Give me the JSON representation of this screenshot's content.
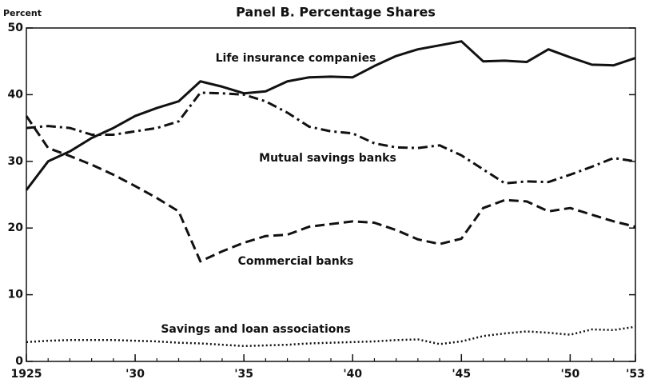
{
  "chart_data": {
    "type": "line",
    "title": "Panel B.  Percentage Shares",
    "y_label": "Percent",
    "x": [
      1925,
      1926,
      1927,
      1928,
      1929,
      1930,
      1931,
      1932,
      1933,
      1934,
      1935,
      1936,
      1937,
      1938,
      1939,
      1940,
      1941,
      1942,
      1943,
      1944,
      1945,
      1946,
      1947,
      1948,
      1949,
      1950,
      1951,
      1952,
      1953
    ],
    "series": [
      {
        "name": "Life insurance companies",
        "color": "#111111",
        "dash": "solid",
        "values": [
          25.7,
          30,
          31.5,
          33.5,
          35,
          36.8,
          38,
          39,
          42,
          41.2,
          40.2,
          40.5,
          42,
          42.6,
          42.7,
          42.6,
          44.3,
          45.8,
          46.8,
          47.4,
          48,
          45,
          45.1,
          44.9,
          46.8,
          45.6,
          44.5,
          44.4,
          45.5
        ]
      },
      {
        "name": "Mutual savings banks",
        "color": "#111111",
        "dash": "dashdot",
        "values": [
          35,
          35.3,
          35,
          34,
          34,
          34.5,
          35,
          36,
          40.3,
          40.2,
          40,
          39,
          37.3,
          35.2,
          34.5,
          34.2,
          32.7,
          32.1,
          32,
          32.4,
          30.9,
          28.8,
          26.7,
          27,
          26.9,
          28,
          29.2,
          30.5,
          30
        ]
      },
      {
        "name": "Commercial banks",
        "color": "#111111",
        "dash": "dashed",
        "values": [
          36.8,
          32,
          30.8,
          29.5,
          28,
          26.3,
          24.5,
          22.5,
          15,
          16.5,
          17.8,
          18.8,
          19,
          20.2,
          20.6,
          21,
          20.8,
          19.7,
          18.3,
          17.6,
          18.4,
          23,
          24.2,
          24,
          22.5,
          23,
          22,
          21,
          20.2
        ]
      },
      {
        "name": "Savings and loan associations",
        "color": "#111111",
        "dash": "dotted",
        "values": [
          2.9,
          3.1,
          3.2,
          3.2,
          3.2,
          3.1,
          3.0,
          2.8,
          2.7,
          2.5,
          2.3,
          2.4,
          2.5,
          2.7,
          2.8,
          2.9,
          3.0,
          3.2,
          3.3,
          2.6,
          3.0,
          3.8,
          4.2,
          4.5,
          4.3,
          4.0,
          4.8,
          4.7,
          5.2
        ]
      }
    ],
    "xlim": [
      1925,
      1953
    ],
    "xticks": [
      1925,
      {
        "value": 1930,
        "label": "'30"
      },
      {
        "value": 1935,
        "label": "'35"
      },
      {
        "value": 1940,
        "label": "'40"
      },
      {
        "value": 1945,
        "label": "'45"
      },
      {
        "value": 1950,
        "label": "'50"
      },
      {
        "value": 1953,
        "label": "'53"
      }
    ],
    "ylim": [
      0,
      50
    ],
    "yticks": [
      0,
      10,
      20,
      30,
      40,
      50
    ],
    "grid": false
  }
}
